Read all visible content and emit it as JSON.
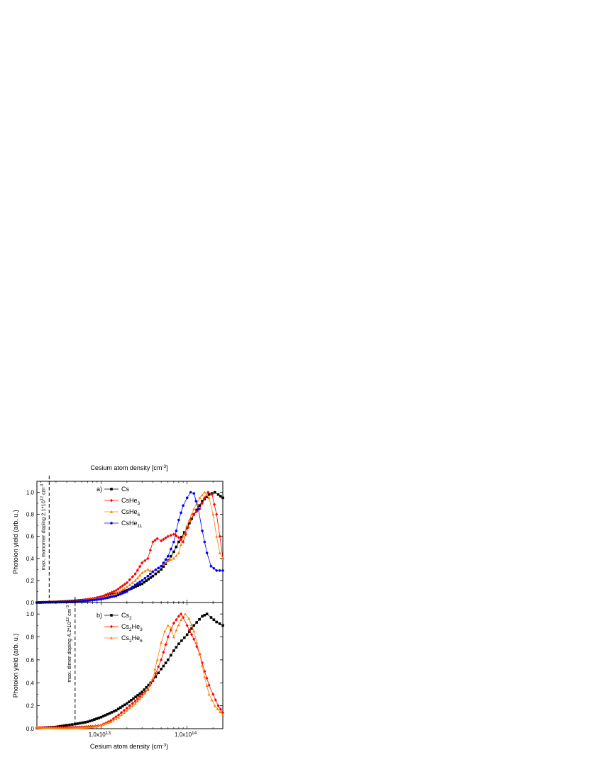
{
  "figure": {
    "top_axis_label": "Cesium atom density [cm",
    "top_axis_label_sup": "-3",
    "top_axis_label_end": "]",
    "bottom_axis_label": "Cesium atom density (cm",
    "bottom_axis_label_sup": "-3",
    "bottom_axis_label_end": ")"
  },
  "chart_data": [
    {
      "type": "line",
      "panel_label": "a)",
      "ylabel": "Photoion yield (arb. u.)",
      "xscale": "log",
      "xlim": [
        1800000000000.0,
        260000000000000.0
      ],
      "ylim": [
        0.0,
        1.1
      ],
      "yticks": [
        "0.0",
        "0.2",
        "0.4",
        "0.6",
        "0.8",
        "1.0"
      ],
      "xticks": [],
      "legend_position": "top-left",
      "annotation": {
        "x": 2500000000000.0,
        "text": "max. monomer doping 2.1*10",
        "sup": "12",
        "unit": " cm",
        "unit_sup": "-3"
      },
      "series": [
        {
          "name": "Cs",
          "sub": "",
          "color": "#000000",
          "marker": "square",
          "points": [
            [
              1800000000000.0,
              0.0
            ],
            [
              3000000000000.0,
              0.005
            ],
            [
              5000000000000.0,
              0.015
            ],
            [
              8000000000000.0,
              0.03
            ],
            [
              10000000000000.0,
              0.05
            ],
            [
              15000000000000.0,
              0.08
            ],
            [
              20000000000000.0,
              0.11
            ],
            [
              30000000000000.0,
              0.17
            ],
            [
              40000000000000.0,
              0.24
            ],
            [
              50000000000000.0,
              0.3
            ],
            [
              60000000000000.0,
              0.38
            ],
            [
              70000000000000.0,
              0.46
            ],
            [
              80000000000000.0,
              0.55
            ],
            [
              100000000000000.0,
              0.68
            ],
            [
              120000000000000.0,
              0.8
            ],
            [
              150000000000000.0,
              0.92
            ],
            [
              180000000000000.0,
              0.98
            ],
            [
              210000000000000.0,
              1.0
            ],
            [
              230000000000000.0,
              0.98
            ],
            [
              260000000000000.0,
              0.95
            ]
          ]
        },
        {
          "name": "CsHe",
          "sub": "3",
          "color": "#ff0000",
          "marker": "diamond",
          "points": [
            [
              1800000000000.0,
              0.0
            ],
            [
              5000000000000.0,
              0.01
            ],
            [
              10000000000000.0,
              0.05
            ],
            [
              15000000000000.0,
              0.11
            ],
            [
              20000000000000.0,
              0.18
            ],
            [
              25000000000000.0,
              0.26
            ],
            [
              30000000000000.0,
              0.36
            ],
            [
              35000000000000.0,
              0.4
            ],
            [
              40000000000000.0,
              0.55
            ],
            [
              45000000000000.0,
              0.58
            ],
            [
              50000000000000.0,
              0.56
            ],
            [
              60000000000000.0,
              0.6
            ],
            [
              70000000000000.0,
              0.62
            ],
            [
              80000000000000.0,
              0.59
            ],
            [
              90000000000000.0,
              0.55
            ],
            [
              110000000000000.0,
              0.75
            ],
            [
              120000000000000.0,
              0.8
            ],
            [
              140000000000000.0,
              0.85
            ],
            [
              160000000000000.0,
              0.95
            ],
            [
              175000000000000.0,
              1.0
            ],
            [
              195000000000000.0,
              0.98
            ],
            [
              220000000000000.0,
              0.8
            ],
            [
              240000000000000.0,
              0.6
            ],
            [
              260000000000000.0,
              0.4
            ]
          ]
        },
        {
          "name": "CsHe",
          "sub": "6",
          "color": "#ff8000",
          "marker": "triangle",
          "points": [
            [
              1800000000000.0,
              0.0
            ],
            [
              5000000000000.0,
              0.01
            ],
            [
              10000000000000.0,
              0.04
            ],
            [
              15000000000000.0,
              0.08
            ],
            [
              20000000000000.0,
              0.14
            ],
            [
              25000000000000.0,
              0.2
            ],
            [
              30000000000000.0,
              0.27
            ],
            [
              35000000000000.0,
              0.3
            ],
            [
              40000000000000.0,
              0.28
            ],
            [
              50000000000000.0,
              0.33
            ],
            [
              60000000000000.0,
              0.38
            ],
            [
              70000000000000.0,
              0.4
            ],
            [
              80000000000000.0,
              0.45
            ],
            [
              90000000000000.0,
              0.6
            ],
            [
              100000000000000.0,
              0.7
            ],
            [
              120000000000000.0,
              0.85
            ],
            [
              140000000000000.0,
              0.95
            ],
            [
              160000000000000.0,
              1.0
            ],
            [
              180000000000000.0,
              0.95
            ],
            [
              200000000000000.0,
              0.8
            ],
            [
              220000000000000.0,
              0.6
            ],
            [
              240000000000000.0,
              0.45
            ],
            [
              260000000000000.0,
              0.4
            ]
          ]
        },
        {
          "name": "CsHe",
          "sub": "11",
          "color": "#0000ff",
          "marker": "circle",
          "points": [
            [
              1800000000000.0,
              0.0
            ],
            [
              5000000000000.0,
              0.005
            ],
            [
              10000000000000.0,
              0.03
            ],
            [
              15000000000000.0,
              0.06
            ],
            [
              20000000000000.0,
              0.1
            ],
            [
              25000000000000.0,
              0.16
            ],
            [
              30000000000000.0,
              0.2
            ],
            [
              35000000000000.0,
              0.24
            ],
            [
              40000000000000.0,
              0.28
            ],
            [
              50000000000000.0,
              0.33
            ],
            [
              60000000000000.0,
              0.42
            ],
            [
              70000000000000.0,
              0.55
            ],
            [
              80000000000000.0,
              0.75
            ],
            [
              90000000000000.0,
              0.88
            ],
            [
              100000000000000.0,
              0.95
            ],
            [
              110000000000000.0,
              1.0
            ],
            [
              120000000000000.0,
              0.99
            ],
            [
              135000000000000.0,
              0.85
            ],
            [
              150000000000000.0,
              0.65
            ],
            [
              170000000000000.0,
              0.45
            ],
            [
              190000000000000.0,
              0.33
            ],
            [
              220000000000000.0,
              0.29
            ],
            [
              260000000000000.0,
              0.29
            ]
          ]
        }
      ]
    },
    {
      "type": "line",
      "panel_label": "b)",
      "ylabel": "Photoion yield (arb. u.)",
      "xscale": "log",
      "xlim": [
        1800000000000.0,
        260000000000000.0
      ],
      "ylim": [
        0.0,
        1.1
      ],
      "yticks": [
        "0.0",
        "0.2",
        "0.4",
        "0.6",
        "0.8",
        "1.0"
      ],
      "xticks": [
        {
          "value": 10000000000000.0,
          "label": "1.0x10",
          "sup": "13"
        },
        {
          "value": 100000000000000.0,
          "label": "1.0x10",
          "sup": "14"
        }
      ],
      "legend_position": "top-left",
      "annotation": {
        "x": 5000000000000.0,
        "text": "max. dimer doping 4.2*10",
        "sup": "12",
        "unit": " cm",
        "unit_sup": "-3"
      },
      "series": [
        {
          "name": "Cs",
          "sub": "2",
          "suffix": "",
          "suffix_sub": "",
          "color": "#000000",
          "marker": "square",
          "points": [
            [
              1800000000000.0,
              0.005
            ],
            [
              3000000000000.0,
              0.015
            ],
            [
              4000000000000.0,
              0.03
            ],
            [
              5000000000000.0,
              0.04
            ],
            [
              7000000000000.0,
              0.06
            ],
            [
              10000000000000.0,
              0.1
            ],
            [
              15000000000000.0,
              0.16
            ],
            [
              20000000000000.0,
              0.22
            ],
            [
              30000000000000.0,
              0.32
            ],
            [
              40000000000000.0,
              0.42
            ],
            [
              50000000000000.0,
              0.52
            ],
            [
              60000000000000.0,
              0.6
            ],
            [
              70000000000000.0,
              0.68
            ],
            [
              80000000000000.0,
              0.74
            ],
            [
              100000000000000.0,
              0.82
            ],
            [
              120000000000000.0,
              0.9
            ],
            [
              150000000000000.0,
              0.98
            ],
            [
              170000000000000.0,
              1.0
            ],
            [
              190000000000000.0,
              0.97
            ],
            [
              220000000000000.0,
              0.93
            ],
            [
              260000000000000.0,
              0.9
            ]
          ]
        },
        {
          "name": "Cs",
          "sub": "2",
          "suffix": "He",
          "suffix_sub": "3",
          "color": "#ff0000",
          "marker": "diamond",
          "points": [
            [
              1800000000000.0,
              0.01
            ],
            [
              4000000000000.0,
              0.01
            ],
            [
              6000000000000.0,
              0.015
            ],
            [
              8000000000000.0,
              0.02
            ],
            [
              10000000000000.0,
              0.03
            ],
            [
              13000000000000.0,
              0.07
            ],
            [
              16000000000000.0,
              0.12
            ],
            [
              20000000000000.0,
              0.18
            ],
            [
              25000000000000.0,
              0.24
            ],
            [
              30000000000000.0,
              0.3
            ],
            [
              35000000000000.0,
              0.34
            ],
            [
              40000000000000.0,
              0.42
            ],
            [
              50000000000000.0,
              0.6
            ],
            [
              60000000000000.0,
              0.8
            ],
            [
              70000000000000.0,
              0.92
            ],
            [
              80000000000000.0,
              0.98
            ],
            [
              85000000000000.0,
              1.0
            ],
            [
              90000000000000.0,
              0.97
            ],
            [
              100000000000000.0,
              0.9
            ],
            [
              120000000000000.0,
              0.78
            ],
            [
              140000000000000.0,
              0.65
            ],
            [
              160000000000000.0,
              0.5
            ],
            [
              180000000000000.0,
              0.38
            ],
            [
              200000000000000.0,
              0.3
            ],
            [
              230000000000000.0,
              0.2
            ],
            [
              260000000000000.0,
              0.14
            ]
          ]
        },
        {
          "name": "Cs",
          "sub": "2",
          "suffix": "He",
          "suffix_sub": "6",
          "color": "#ff8000",
          "marker": "triangle",
          "points": [
            [
              1800000000000.0,
              0.01
            ],
            [
              4000000000000.0,
              0.005
            ],
            [
              6000000000000.0,
              0.01
            ],
            [
              8000000000000.0,
              0.015
            ],
            [
              10000000000000.0,
              0.03
            ],
            [
              13000000000000.0,
              0.06
            ],
            [
              16000000000000.0,
              0.1
            ],
            [
              20000000000000.0,
              0.16
            ],
            [
              25000000000000.0,
              0.22
            ],
            [
              30000000000000.0,
              0.28
            ],
            [
              35000000000000.0,
              0.34
            ],
            [
              40000000000000.0,
              0.44
            ],
            [
              45000000000000.0,
              0.6
            ],
            [
              50000000000000.0,
              0.75
            ],
            [
              55000000000000.0,
              0.85
            ],
            [
              60000000000000.0,
              0.9
            ],
            [
              65000000000000.0,
              0.88
            ],
            [
              70000000000000.0,
              0.8
            ],
            [
              75000000000000.0,
              0.86
            ],
            [
              85000000000000.0,
              0.95
            ],
            [
              95000000000000.0,
              1.0
            ],
            [
              105000000000000.0,
              0.96
            ],
            [
              120000000000000.0,
              0.85
            ],
            [
              140000000000000.0,
              0.65
            ],
            [
              160000000000000.0,
              0.45
            ],
            [
              180000000000000.0,
              0.3
            ],
            [
              210000000000000.0,
              0.2
            ],
            [
              260000000000000.0,
              0.12
            ]
          ]
        }
      ]
    }
  ]
}
